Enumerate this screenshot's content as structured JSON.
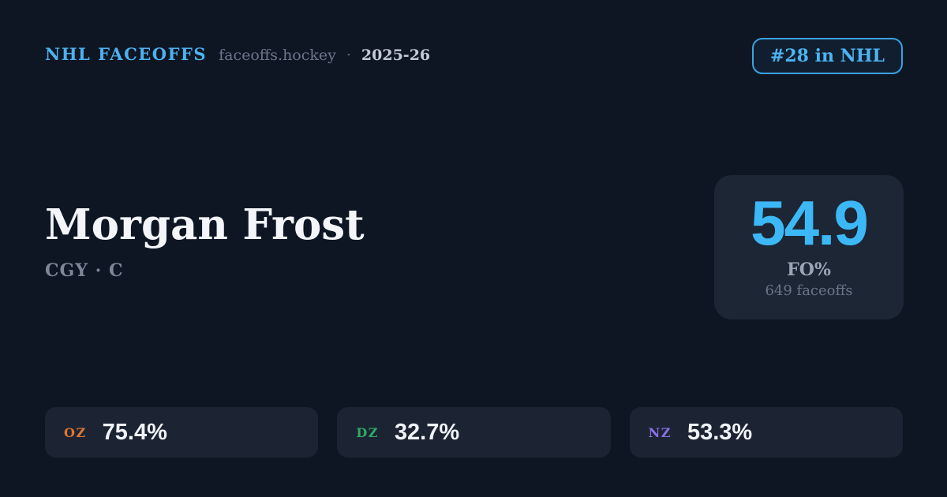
{
  "colors": {
    "background": "#0e1624",
    "brand_blue": "#4cb2ee",
    "badge_blue": "#4cb4f2",
    "badge_border": "#3ba2e0",
    "big_number_blue": "#3cb8f7",
    "card_bg": "#1d2635",
    "pill_bg": "#1c2433"
  },
  "header": {
    "brand": "NHL FACEOFFS",
    "domain": "faceoffs.hockey",
    "separator": "·",
    "season": "2025-26",
    "rank_badge": "#28 in NHL"
  },
  "player": {
    "name": "Morgan Frost",
    "team_position": "CGY · C"
  },
  "summary": {
    "value": "54.9",
    "label": "FO%",
    "subtext": "649 faceoffs"
  },
  "zones": [
    {
      "code": "OZ",
      "value": "75.4%",
      "color": "#e1762e"
    },
    {
      "code": "DZ",
      "value": "32.7%",
      "color": "#2fab66"
    },
    {
      "code": "NZ",
      "value": "53.3%",
      "color": "#8a70ea"
    }
  ]
}
